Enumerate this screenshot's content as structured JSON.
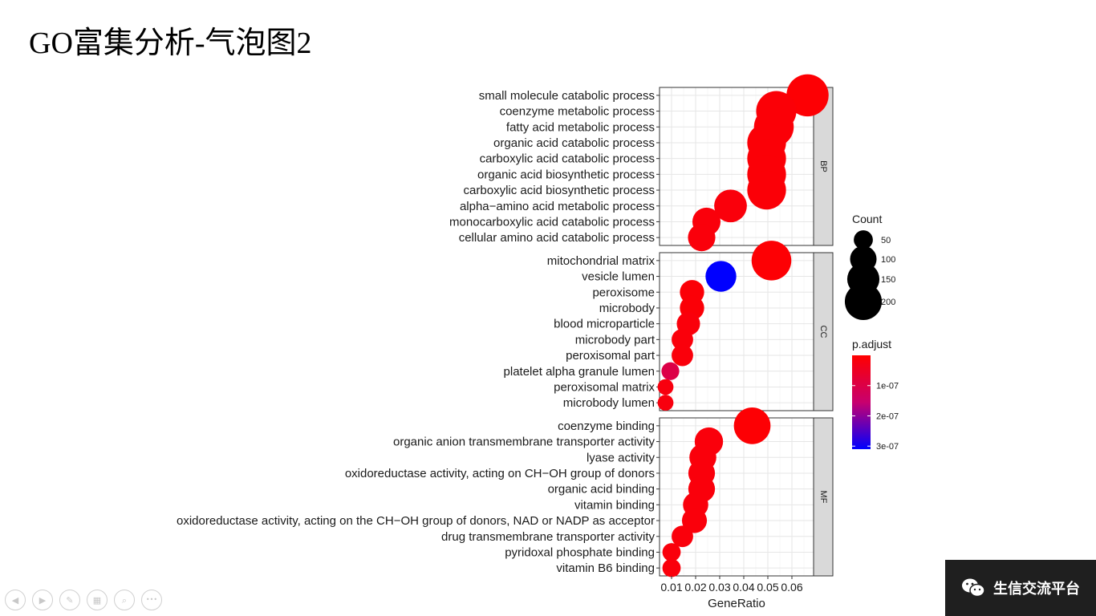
{
  "slide": {
    "title": "GO富集分析-气泡图2",
    "watermark": "生信交流平台"
  },
  "toolbar": {
    "buttons": [
      {
        "name": "prev-slide-button",
        "icon": "arrow-left-icon",
        "glyph": "◀"
      },
      {
        "name": "next-slide-button",
        "icon": "arrow-right-icon",
        "glyph": "▶"
      },
      {
        "name": "pen-button",
        "icon": "pen-icon",
        "glyph": "✎"
      },
      {
        "name": "slides-overview-button",
        "icon": "grid-icon",
        "glyph": "▦"
      },
      {
        "name": "zoom-button",
        "icon": "magnifier-icon",
        "glyph": "⌕"
      },
      {
        "name": "more-options-button",
        "icon": "more-icon",
        "glyph": "•••"
      }
    ]
  },
  "chart_data": {
    "type": "scatter",
    "title": "",
    "xlabel": "GeneRatio",
    "ylabel": "",
    "xlim": [
      0.005,
      0.069
    ],
    "x_ticks": [
      0.01,
      0.02,
      0.03,
      0.04,
      0.05,
      0.06
    ],
    "x_tick_labels": [
      "0.01",
      "0.02",
      "0.03",
      "0.04",
      "0.05",
      "0.06"
    ],
    "grid": true,
    "legend_position": "right",
    "size_legend": {
      "title": "Count",
      "entries": [
        {
          "label": "50",
          "value": 50
        },
        {
          "label": "100",
          "value": 100
        },
        {
          "label": "150",
          "value": 150
        },
        {
          "label": "200",
          "value": 200
        }
      ]
    },
    "color_legend": {
      "title": "p.adjust",
      "low_color": "#FF0000",
      "high_color": "#0000FF",
      "min": 0,
      "max": 3.1e-07,
      "ticks": [
        {
          "label": "1e-07",
          "value": 1e-07
        },
        {
          "label": "2e-07",
          "value": 2e-07
        },
        {
          "label": "3e-07",
          "value": 3e-07
        }
      ]
    },
    "facets": [
      {
        "name": "BP",
        "terms": [
          {
            "label": "small molecule catabolic process",
            "x": 0.0665,
            "count": 220,
            "p_adjust": 5e-09
          },
          {
            "label": "coenzyme metabolic process",
            "x": 0.0535,
            "count": 200,
            "p_adjust": 1e-08
          },
          {
            "label": "fatty acid metabolic process",
            "x": 0.0525,
            "count": 195,
            "p_adjust": 1e-08
          },
          {
            "label": "organic acid catabolic process",
            "x": 0.0495,
            "count": 185,
            "p_adjust": 1e-08
          },
          {
            "label": "carboxylic acid catabolic process",
            "x": 0.0495,
            "count": 185,
            "p_adjust": 1e-08
          },
          {
            "label": "organic acid biosynthetic process",
            "x": 0.0495,
            "count": 185,
            "p_adjust": 1e-08
          },
          {
            "label": "carboxylic acid biosynthetic process",
            "x": 0.0495,
            "count": 185,
            "p_adjust": 1e-08
          },
          {
            "label": "alpha−amino acid metabolic process",
            "x": 0.0345,
            "count": 130,
            "p_adjust": 1.5e-08
          },
          {
            "label": "monocarboxylic acid catabolic process",
            "x": 0.0245,
            "count": 95,
            "p_adjust": 1.5e-08
          },
          {
            "label": "cellular amino acid catabolic process",
            "x": 0.0225,
            "count": 90,
            "p_adjust": 1.5e-08
          }
        ]
      },
      {
        "name": "CC",
        "terms": [
          {
            "label": "mitochondrial matrix",
            "x": 0.0515,
            "count": 195,
            "p_adjust": 5e-09
          },
          {
            "label": "vesicle lumen",
            "x": 0.0305,
            "count": 115,
            "p_adjust": 3.1e-07
          },
          {
            "label": "peroxisome",
            "x": 0.0185,
            "count": 70,
            "p_adjust": 1e-08
          },
          {
            "label": "microbody",
            "x": 0.0185,
            "count": 70,
            "p_adjust": 1e-08
          },
          {
            "label": "blood microparticle",
            "x": 0.017,
            "count": 64,
            "p_adjust": 1.5e-08
          },
          {
            "label": "microbody part",
            "x": 0.0145,
            "count": 54,
            "p_adjust": 1.5e-08
          },
          {
            "label": "peroxisomal part",
            "x": 0.0145,
            "count": 54,
            "p_adjust": 1.5e-08
          },
          {
            "label": "platelet alpha granule lumen",
            "x": 0.0095,
            "count": 36,
            "p_adjust": 1e-07
          },
          {
            "label": "peroxisomal matrix",
            "x": 0.0075,
            "count": 28,
            "p_adjust": 2e-08
          },
          {
            "label": "microbody lumen",
            "x": 0.0075,
            "count": 28,
            "p_adjust": 2e-08
          }
        ]
      },
      {
        "name": "MF",
        "terms": [
          {
            "label": "coenzyme binding",
            "x": 0.0435,
            "count": 165,
            "p_adjust": 5e-09
          },
          {
            "label": "organic anion transmembrane transporter activity",
            "x": 0.0255,
            "count": 97,
            "p_adjust": 1.5e-08
          },
          {
            "label": "lyase activity",
            "x": 0.023,
            "count": 87,
            "p_adjust": 1.5e-08
          },
          {
            "label": "oxidoreductase activity, acting on CH−OH group of donors",
            "x": 0.0225,
            "count": 85,
            "p_adjust": 1.5e-08
          },
          {
            "label": "organic acid binding",
            "x": 0.0225,
            "count": 85,
            "p_adjust": 1.5e-08
          },
          {
            "label": "vitamin binding",
            "x": 0.02,
            "count": 76,
            "p_adjust": 1.5e-08
          },
          {
            "label": "oxidoreductase activity, acting on the CH−OH group of donors, NAD or NADP as acceptor",
            "x": 0.0195,
            "count": 74,
            "p_adjust": 1.5e-08
          },
          {
            "label": "drug transmembrane transporter activity",
            "x": 0.0145,
            "count": 54,
            "p_adjust": 1.5e-08
          },
          {
            "label": "pyridoxal phosphate binding",
            "x": 0.01,
            "count": 38,
            "p_adjust": 1.5e-08
          },
          {
            "label": "vitamin B6 binding",
            "x": 0.01,
            "count": 38,
            "p_adjust": 1.5e-08
          }
        ]
      }
    ]
  }
}
